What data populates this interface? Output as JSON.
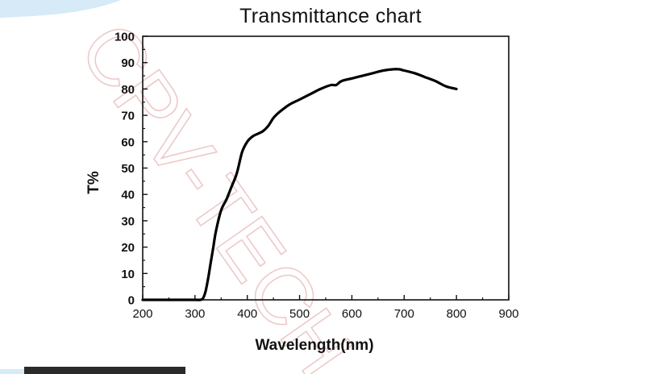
{
  "chart_data": {
    "type": "line",
    "title": "Transmittance chart",
    "xlabel": "Wavelength(nm)",
    "ylabel": "T%",
    "xlim": [
      200,
      900
    ],
    "ylim": [
      0,
      100
    ],
    "xticks": [
      200,
      300,
      400,
      500,
      600,
      700,
      800,
      900
    ],
    "yticks": [
      0,
      10,
      20,
      30,
      40,
      50,
      60,
      70,
      80,
      90,
      100
    ],
    "grid": false,
    "legend": "none",
    "series": [
      {
        "color": "#000000",
        "x": [
          200,
          250,
          300,
          310,
          315,
          320,
          325,
          330,
          335,
          340,
          350,
          360,
          370,
          380,
          390,
          400,
          410,
          420,
          430,
          440,
          450,
          460,
          480,
          500,
          520,
          540,
          560,
          570,
          580,
          600,
          620,
          640,
          660,
          680,
          690,
          700,
          720,
          740,
          760,
          780,
          800
        ],
        "y": [
          0,
          0,
          0,
          0,
          0.5,
          3,
          8,
          14,
          20,
          26,
          34,
          38,
          43,
          48,
          56,
          60,
          62,
          63,
          64,
          66,
          69,
          71,
          74,
          76,
          78,
          80,
          81.5,
          81.5,
          83,
          84,
          85,
          86,
          87,
          87.5,
          87.5,
          87,
          86,
          84.5,
          83,
          81,
          80
        ]
      }
    ]
  },
  "watermark": "CPV-TECH"
}
